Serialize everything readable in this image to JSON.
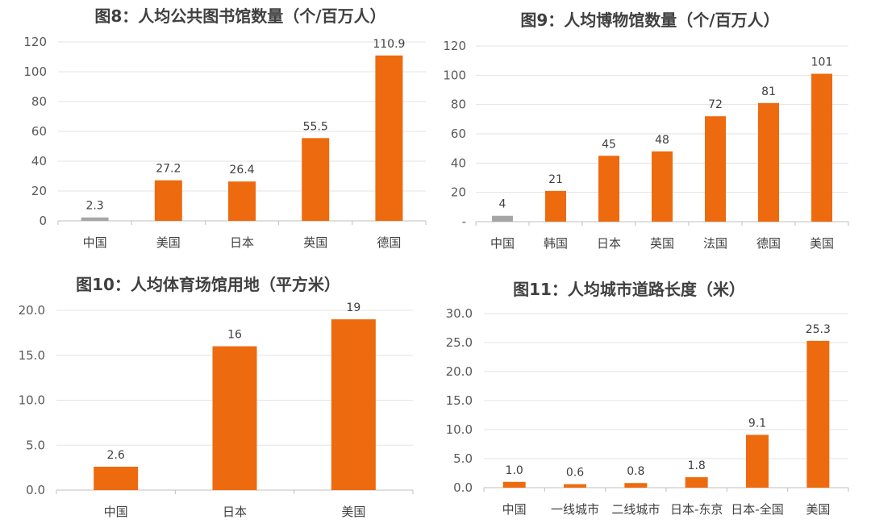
{
  "chart_data": [
    {
      "type": "bar",
      "title": "图8：人均公共图书馆数量（个/百万人）",
      "categories": [
        "中国",
        "美国",
        "日本",
        "英国",
        "德国"
      ],
      "values": [
        2.3,
        27.2,
        26.4,
        55.5,
        110.9
      ],
      "data_labels": [
        "2.3",
        "27.2",
        "26.4",
        "55.5",
        "110.9"
      ],
      "ylim": [
        0,
        120
      ],
      "y_ticks": [
        "0",
        "20",
        "40",
        "60",
        "80",
        "100",
        "120"
      ],
      "grid": true,
      "legend": "none",
      "highlight_index": 0
    },
    {
      "type": "bar",
      "title": "图9：人均博物馆数量（个/百万人）",
      "categories": [
        "中国",
        "韩国",
        "日本",
        "英国",
        "法国",
        "德国",
        "美国"
      ],
      "values": [
        4,
        21,
        45,
        48,
        72,
        81,
        101
      ],
      "data_labels": [
        "4",
        "21",
        "45",
        "48",
        "72",
        "81",
        "101"
      ],
      "ylim": [
        0,
        120
      ],
      "y_ticks": [
        "-",
        "20",
        "40",
        "60",
        "80",
        "100",
        "120"
      ],
      "grid": true,
      "legend": "none",
      "highlight_index": 0
    },
    {
      "type": "bar",
      "title": "图10：人均体育场馆用地（平方米）",
      "categories": [
        "中国",
        "日本",
        "美国"
      ],
      "values": [
        2.6,
        16,
        19
      ],
      "data_labels": [
        "2.6",
        "16",
        "19"
      ],
      "ylim": [
        0,
        20
      ],
      "y_ticks": [
        "0.0",
        "5.0",
        "10.0",
        "15.0",
        "20.0"
      ],
      "grid": true,
      "legend": "none",
      "highlight_index": -1
    },
    {
      "type": "bar",
      "title": "图11：人均城市道路长度（米）",
      "categories": [
        "中国",
        "一线城市",
        "二线城市",
        "日本-东京",
        "日本-全国",
        "美国"
      ],
      "values": [
        1.0,
        0.6,
        0.8,
        1.8,
        9.1,
        25.3
      ],
      "data_labels": [
        "1.0",
        "0.6",
        "0.8",
        "1.8",
        "9.1",
        "25.3"
      ],
      "ylim": [
        0,
        30
      ],
      "y_ticks": [
        "0.0",
        "5.0",
        "10.0",
        "15.0",
        "20.0",
        "25.0",
        "30.0"
      ],
      "grid": true,
      "legend": "none",
      "highlight_index": -1
    }
  ],
  "colors": {
    "bar": "#ee6a0e",
    "highlight": "#a6a6a6"
  }
}
